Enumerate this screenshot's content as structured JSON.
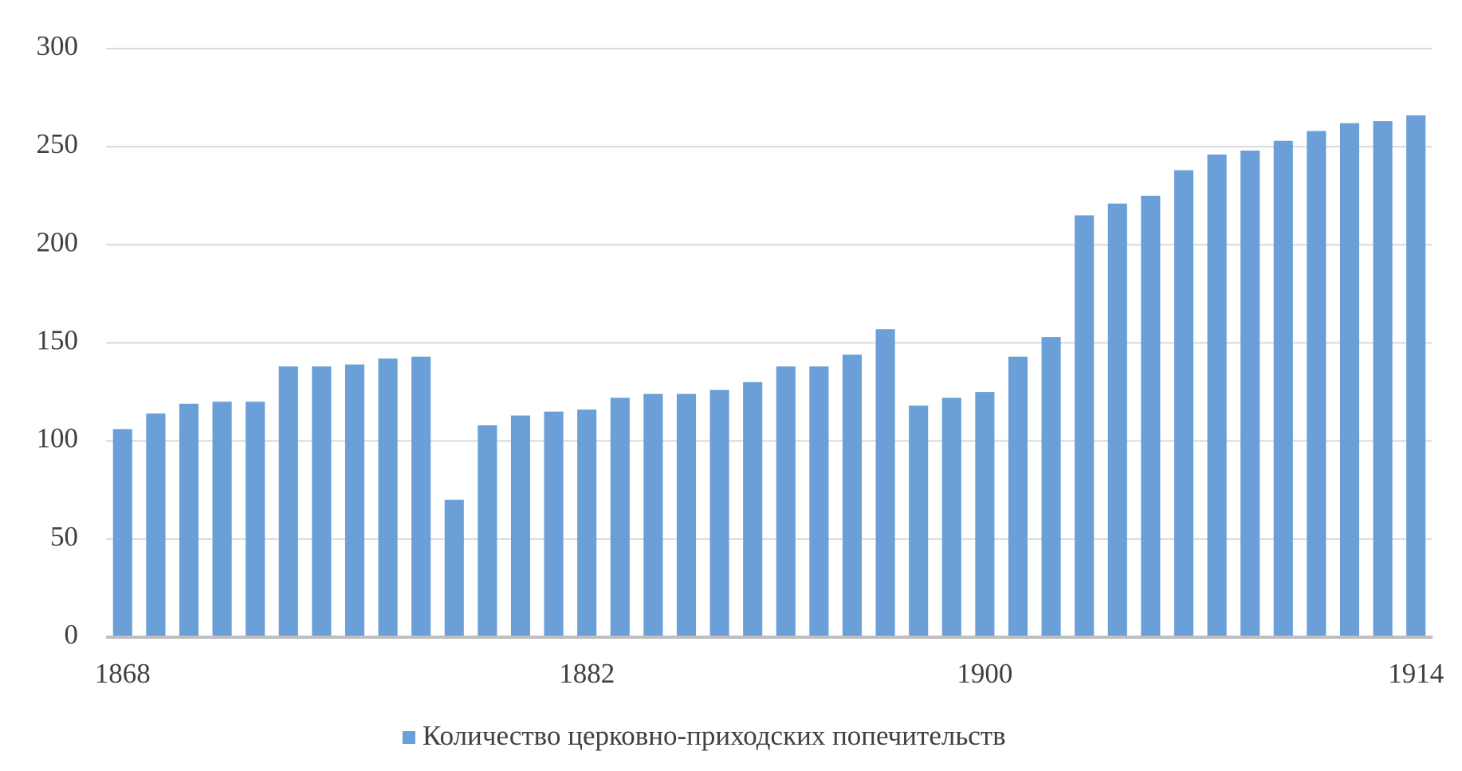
{
  "chart_data": {
    "type": "bar",
    "categories": [
      "1868",
      null,
      null,
      null,
      null,
      null,
      null,
      null,
      null,
      null,
      null,
      null,
      null,
      null,
      "1882",
      null,
      null,
      null,
      null,
      null,
      null,
      null,
      null,
      null,
      null,
      null,
      "1900",
      null,
      null,
      null,
      null,
      null,
      null,
      null,
      null,
      null,
      null,
      null,
      null,
      "1914"
    ],
    "series": [
      {
        "name": "Количество церковно-приходских попечительств",
        "color": "#6a9fd8",
        "values": [
          106,
          114,
          119,
          120,
          120,
          138,
          138,
          139,
          142,
          143,
          70,
          108,
          113,
          115,
          116,
          122,
          124,
          124,
          126,
          130,
          138,
          138,
          144,
          157,
          118,
          122,
          125,
          143,
          153,
          215,
          221,
          225,
          238,
          246,
          248,
          253,
          258,
          262,
          263,
          266
        ]
      }
    ],
    "ylim": [
      0,
      300
    ],
    "yticks": [
      0,
      50,
      100,
      150,
      200,
      250,
      300
    ],
    "grid": true,
    "legend": "bottom"
  }
}
